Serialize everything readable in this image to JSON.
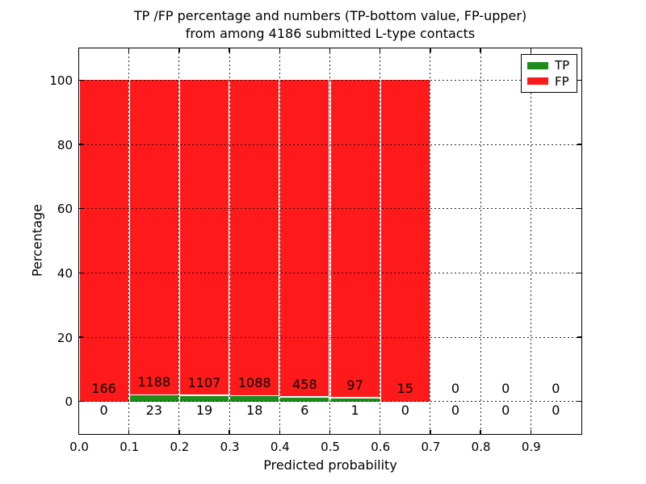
{
  "title": {
    "line1": "TP /FP percentage and numbers (TP-bottom value, FP-upper)",
    "line2": "from among 4186 submitted L-type contacts"
  },
  "axes": {
    "xlabel": "Predicted probability",
    "ylabel": "Percentage",
    "x_tick_labels": [
      "0.0",
      "0.1",
      "0.2",
      "0.3",
      "0.4",
      "0.5",
      "0.6",
      "0.7",
      "0.8",
      "0.9"
    ],
    "y_tick_labels": [
      "0",
      "20",
      "40",
      "60",
      "80",
      "100"
    ]
  },
  "legend": {
    "items": [
      {
        "label": "TP",
        "color": "#1c8c1c"
      },
      {
        "label": "FP",
        "color": "#fe1a1a"
      }
    ]
  },
  "colors": {
    "tp": "#1c8c1c",
    "fp": "#fe1a1a",
    "frame": "#000000",
    "background": "#ffffff"
  },
  "chart_data": {
    "type": "bar",
    "stacked": true,
    "percent_mode": true,
    "title": "TP /FP percentage and numbers (TP-bottom value, FP-upper) from among 4186 submitted L-type contacts",
    "xlabel": "Predicted probability",
    "ylabel": "Percentage",
    "total_contacts": 4186,
    "bin_width": 0.1,
    "bin_starts": [
      0.0,
      0.1,
      0.2,
      0.3,
      0.4,
      0.5,
      0.6,
      0.7,
      0.8,
      0.9
    ],
    "xticks": [
      0.0,
      0.1,
      0.2,
      0.3,
      0.4,
      0.5,
      0.6,
      0.7,
      0.8,
      0.9
    ],
    "yticks": [
      0,
      20,
      40,
      60,
      80,
      100
    ],
    "xlim": [
      0.0,
      1.0
    ],
    "ylim_visible": [
      -10,
      110
    ],
    "grid": true,
    "legend_position": "upper right",
    "series": [
      {
        "name": "TP",
        "color": "#1c8c1c",
        "position": "bottom",
        "counts": [
          0,
          23,
          19,
          18,
          6,
          1,
          0,
          0,
          0,
          0
        ]
      },
      {
        "name": "FP",
        "color": "#fe1a1a",
        "position": "top",
        "counts": [
          166,
          1188,
          1107,
          1088,
          458,
          97,
          15,
          0,
          0,
          0
        ]
      }
    ]
  }
}
